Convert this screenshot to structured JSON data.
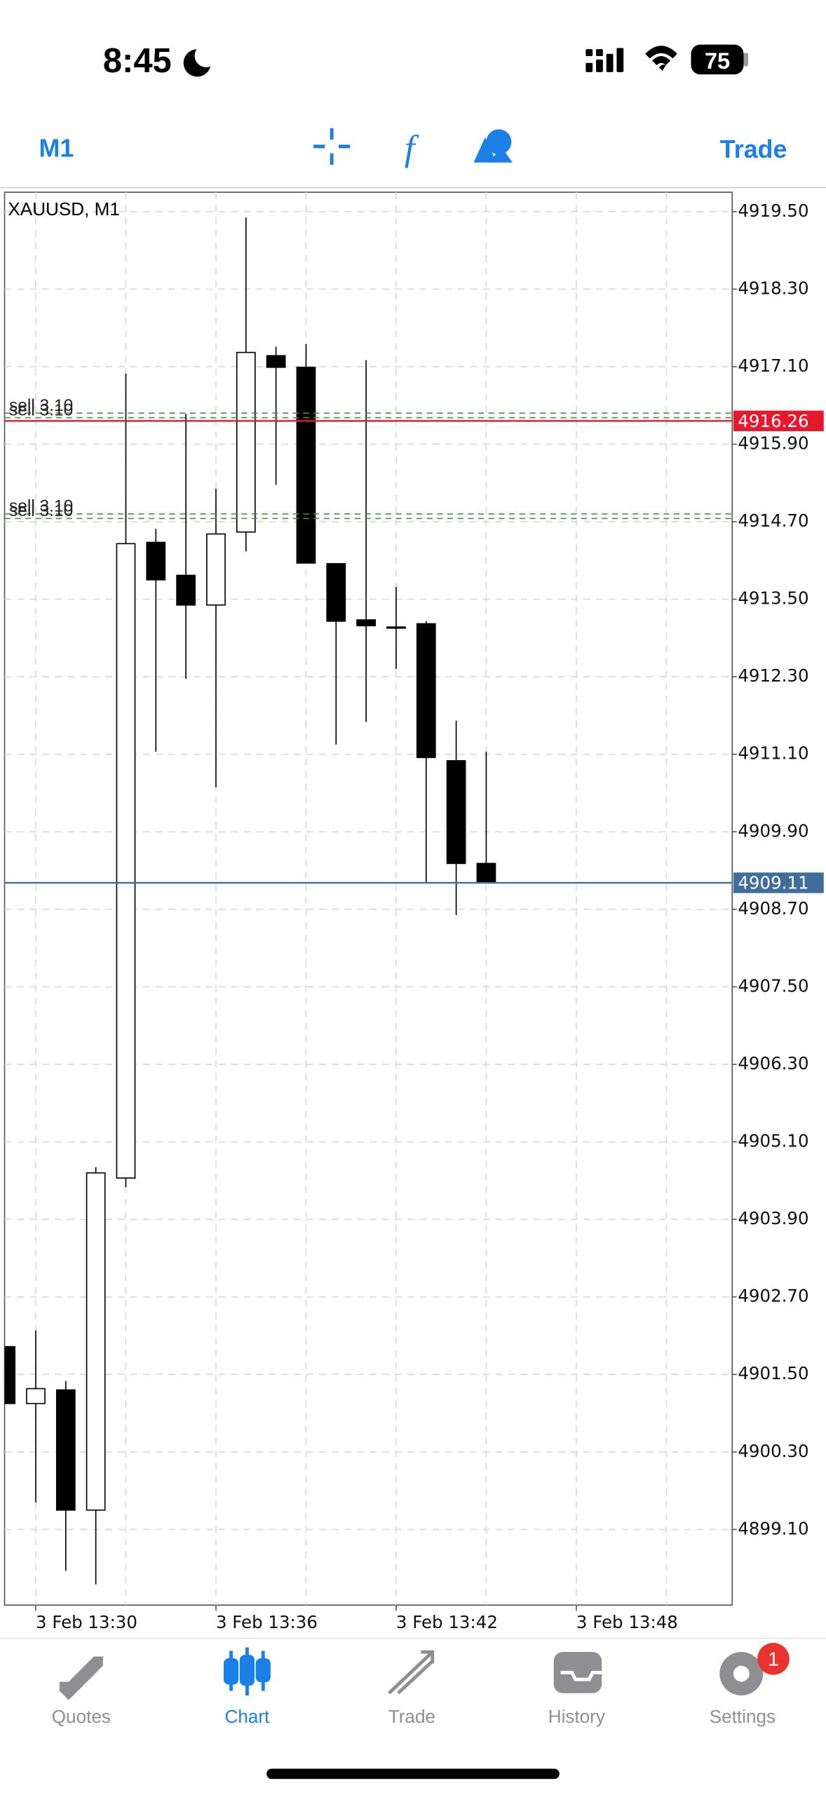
{
  "status_bar": {
    "time": "8:45",
    "battery": "75"
  },
  "toolbar": {
    "timeframe": "M1",
    "trade": "Trade"
  },
  "chart_data": {
    "type": "candlestick",
    "title": "XAUUSD, M1",
    "categories": [
      null,
      "3 Feb 13:30",
      null,
      null,
      null,
      null,
      null,
      "3 Feb 13:36",
      null,
      null,
      null,
      null,
      null,
      "3 Feb 13:42",
      null,
      null,
      null,
      null,
      null,
      "3 Feb 13:48"
    ],
    "open": [
      4901.93,
      4901.05,
      4901.26,
      4899.4,
      4904.54,
      4914.38,
      4913.87,
      4913.41,
      4914.54,
      4917.27,
      4917.09,
      4914.05,
      4913.18,
      4913.07,
      4913.12,
      4911.0,
      4909.41,
      null,
      null,
      null
    ],
    "high": [
      4901.93,
      4902.18,
      4901.4,
      4904.71,
      4916.99,
      4914.59,
      4916.37,
      4915.21,
      4919.41,
      4917.41,
      4917.45,
      4914.05,
      4917.2,
      4913.69,
      4913.16,
      4911.62,
      4911.14,
      null,
      null,
      null
    ],
    "low": [
      4901.05,
      4899.52,
      4898.46,
      4898.25,
      4904.4,
      4911.14,
      4912.27,
      4910.59,
      4914.24,
      4915.27,
      4914.06,
      4911.25,
      4911.6,
      4912.42,
      4909.12,
      4908.61,
      4909.11,
      null,
      null,
      null
    ],
    "close": [
      4901.05,
      4901.28,
      4899.4,
      4904.62,
      4914.36,
      4913.8,
      4913.41,
      4914.51,
      4917.32,
      4917.09,
      4914.06,
      4913.16,
      4913.09,
      4913.07,
      4911.05,
      4909.41,
      4909.11,
      null,
      null,
      null
    ],
    "up_color": "#ffffff",
    "down_color": "#000000",
    "ylim": [
      4897.93,
      4919.8
    ],
    "yticks": [
      {
        "value": 4919.5,
        "label": "4919.50"
      },
      {
        "value": 4918.3,
        "label": "4918.30"
      },
      {
        "value": 4917.1,
        "label": "4917.10"
      },
      {
        "value": 4915.9,
        "label": "4915.90"
      },
      {
        "value": 4914.7,
        "label": "4914.70"
      },
      {
        "value": 4913.5,
        "label": "4913.50"
      },
      {
        "value": 4912.3,
        "label": "4912.30"
      },
      {
        "value": 4911.1,
        "label": "4911.10"
      },
      {
        "value": 4909.9,
        "label": "4909.90"
      },
      {
        "value": 4908.7,
        "label": "4908.70"
      },
      {
        "value": 4907.5,
        "label": "4907.50"
      },
      {
        "value": 4906.3,
        "label": "4906.30"
      },
      {
        "value": 4905.1,
        "label": "4905.10"
      },
      {
        "value": 4903.9,
        "label": "4903.90"
      },
      {
        "value": 4902.7,
        "label": "4902.70"
      },
      {
        "value": 4901.5,
        "label": "4901.50"
      },
      {
        "value": 4900.3,
        "label": "4900.30"
      },
      {
        "value": 4899.1,
        "label": "4899.10"
      }
    ],
    "grid": true,
    "orders": [
      {
        "label": "sell 3.10",
        "value": 4916.38
      },
      {
        "label": "sell 3.10",
        "value": 4916.31
      },
      {
        "label": "sell 3.10",
        "value": 4914.82
      },
      {
        "label": "sell 3.10",
        "value": 4914.75
      }
    ],
    "order_color": "#3a9a3a",
    "price_lines": [
      {
        "value": 4916.26,
        "color": "#e8182c"
      },
      {
        "value": 4909.11,
        "color": "#3f6e9c"
      }
    ]
  },
  "tab_bar": {
    "tabs": [
      "Quotes",
      "Chart",
      "Trade",
      "History",
      "Settings"
    ],
    "badge": "1"
  }
}
